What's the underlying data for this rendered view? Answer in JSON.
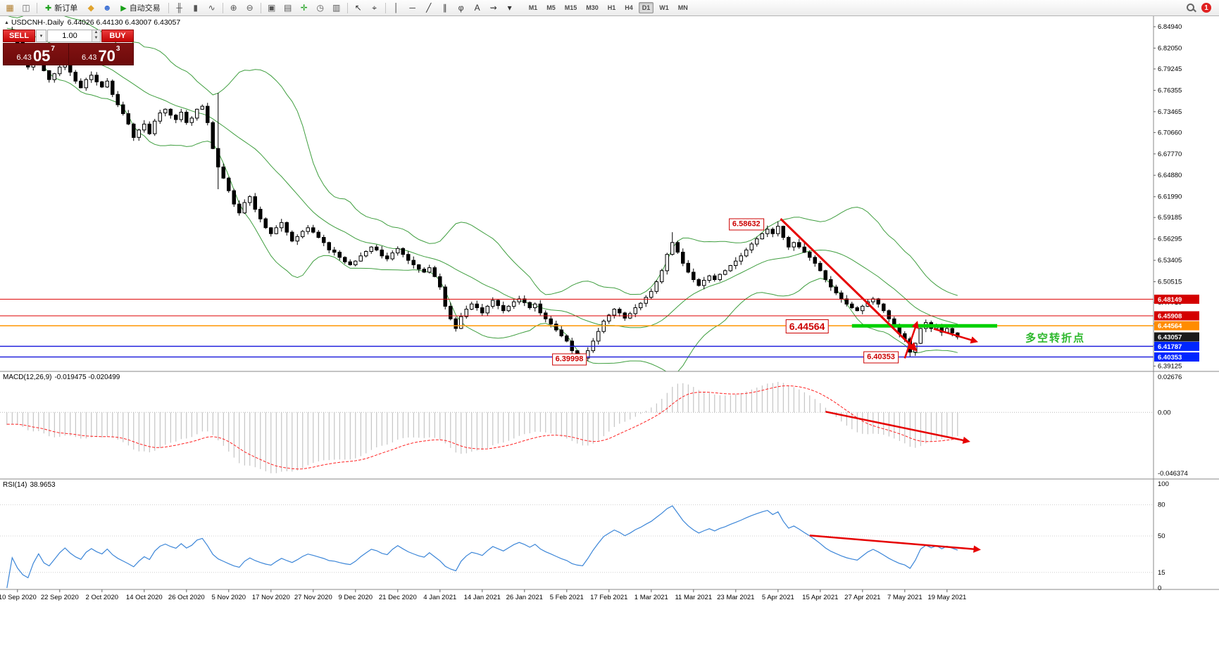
{
  "toolbar": {
    "items": [
      {
        "name": "new-chart-icon",
        "glyph": "▦",
        "color": "#b07c2a"
      },
      {
        "name": "profiles-icon",
        "glyph": "◫",
        "color": "#6a6a6a"
      },
      {
        "sep": true
      },
      {
        "name": "new-order-button",
        "label": "新订单",
        "glyph": "✚",
        "glyph_color": "#1da11d"
      },
      {
        "name": "metaeditor-icon",
        "glyph": "◆",
        "color": "#e0a32e"
      },
      {
        "name": "market-icon",
        "glyph": "☻",
        "color": "#3b6fd4"
      },
      {
        "name": "autotrading-button",
        "label": "自动交易",
        "glyph": "▶",
        "glyph_color": "#18a018"
      },
      {
        "sep": true
      },
      {
        "name": "bar-chart-icon",
        "glyph": "╫",
        "color": "#555555"
      },
      {
        "name": "candlestick-icon",
        "glyph": "▮",
        "color": "#555555"
      },
      {
        "name": "line-chart-icon",
        "glyph": "∿",
        "color": "#555555"
      },
      {
        "sep": true
      },
      {
        "name": "zoom-in-icon",
        "glyph": "⊕",
        "color": "#555555"
      },
      {
        "name": "zoom-out-icon",
        "glyph": "⊖",
        "color": "#555555"
      },
      {
        "sep": true
      },
      {
        "name": "tile-windows-icon",
        "glyph": "▣",
        "color": "#555555"
      },
      {
        "name": "cascade-windows-icon",
        "glyph": "▤",
        "color": "#555555"
      },
      {
        "name": "add-indicator-icon",
        "glyph": "✛",
        "color": "#1da11d"
      },
      {
        "name": "period-icon",
        "glyph": "◷",
        "color": "#555555"
      },
      {
        "name": "templates-icon",
        "glyph": "▥",
        "color": "#555555"
      },
      {
        "sep": true
      },
      {
        "name": "cursor-icon",
        "glyph": "↖",
        "color": "#333333"
      },
      {
        "name": "crosshair-icon",
        "glyph": "⌖",
        "color": "#333333"
      },
      {
        "sep": true
      },
      {
        "name": "vertical-line-icon",
        "glyph": "│",
        "color": "#333333"
      },
      {
        "name": "horizontal-line-icon",
        "glyph": "─",
        "color": "#333333"
      },
      {
        "name": "trendline-icon",
        "glyph": "╱",
        "color": "#333333"
      },
      {
        "name": "channel-icon",
        "glyph": "∥",
        "color": "#333333"
      },
      {
        "name": "fibonacci-icon",
        "glyph": "φ",
        "color": "#333333"
      },
      {
        "name": "text-icon",
        "glyph": "A",
        "color": "#333333"
      },
      {
        "name": "arrows-icon",
        "glyph": "⇝",
        "color": "#333333"
      },
      {
        "name": "shapes-dropdown-icon",
        "glyph": "▾",
        "color": "#333333"
      }
    ],
    "timeframes": [
      {
        "label": "M1"
      },
      {
        "label": "M5"
      },
      {
        "label": "M15"
      },
      {
        "label": "M30"
      },
      {
        "label": "H1"
      },
      {
        "label": "H4"
      },
      {
        "label": "D1",
        "active": true
      },
      {
        "label": "W1"
      },
      {
        "label": "MN"
      }
    ],
    "badge": "1"
  },
  "chart_header": {
    "collapse_icon": "▲",
    "symbol": "USDCNH-.Daily",
    "ohlc": "6.44026 6.44130 6.43007 6.43057"
  },
  "trade_panel": {
    "sell_label": "SELL",
    "buy_label": "BUY",
    "dropdown_glyph": "▾",
    "volume": "1.00",
    "spin_up": "▲",
    "spin_down": "▼",
    "sell_price_prefix": "6.43",
    "sell_price_big": "05",
    "sell_price_sup": "7",
    "buy_price_prefix": "6.43",
    "buy_price_big": "70",
    "buy_price_sup": "3"
  },
  "chart_data": {
    "type": "candlestick",
    "symbol": "USDCNH",
    "period": "Daily",
    "arrow_color": "#e60000",
    "candle_up_color": "#ffffff",
    "candle_down_color": "#000000",
    "bollinger_color": "#3f9e3f",
    "bollinger_period": 20,
    "x_labels": [
      "10 Sep 2020",
      "22 Sep 2020",
      "2 Oct 2020",
      "14 Oct 2020",
      "26 Oct 2020",
      "5 Nov 2020",
      "17 Nov 2020",
      "27 Nov 2020",
      "9 Dec 2020",
      "21 Dec 2020",
      "4 Jan 2021",
      "14 Jan 2021",
      "26 Jan 2021",
      "5 Feb 2021",
      "17 Feb 2021",
      "1 Mar 2021",
      "11 Mar 2021",
      "23 Mar 2021",
      "5 Apr 2021",
      "15 Apr 2021",
      "27 Apr 2021",
      "7 May 2021",
      "19 May 2021"
    ],
    "x_label_days": [
      2,
      10,
      18,
      26,
      34,
      42,
      50,
      58,
      66,
      74,
      82,
      90,
      98,
      106,
      114,
      122,
      130,
      138,
      146,
      154,
      162,
      170,
      178
    ],
    "y_ticks": [
      6.8494,
      6.8205,
      6.79245,
      6.76355,
      6.73465,
      6.7066,
      6.6777,
      6.6488,
      6.6199,
      6.59185,
      6.56295,
      6.53405,
      6.50515,
      6.4771,
      6.4482,
      6.4193,
      6.39125
    ],
    "y_range": [
      6.385,
      6.857
    ],
    "closes": [
      6.833,
      6.841,
      6.828,
      6.81,
      6.795,
      6.806,
      6.815,
      6.79,
      6.778,
      6.786,
      6.795,
      6.802,
      6.788,
      6.776,
      6.767,
      6.778,
      6.784,
      6.775,
      6.768,
      6.776,
      6.758,
      6.744,
      6.732,
      6.718,
      6.7,
      6.71,
      6.718,
      6.705,
      6.722,
      6.733,
      6.738,
      6.73,
      6.724,
      6.734,
      6.72,
      6.726,
      6.738,
      6.742,
      6.72,
      6.685,
      6.66,
      6.645,
      6.628,
      6.61,
      6.598,
      6.612,
      6.62,
      6.603,
      6.59,
      6.578,
      6.57,
      6.578,
      6.585,
      6.572,
      6.56,
      6.566,
      6.573,
      6.578,
      6.572,
      6.565,
      6.558,
      6.548,
      6.545,
      6.538,
      6.532,
      6.528,
      6.533,
      6.54,
      6.546,
      6.552,
      6.548,
      6.54,
      6.536,
      6.544,
      6.55,
      6.542,
      6.534,
      6.528,
      6.522,
      6.518,
      6.524,
      6.512,
      6.498,
      6.472,
      6.455,
      6.442,
      6.458,
      6.468,
      6.475,
      6.47,
      6.463,
      6.472,
      6.48,
      6.473,
      6.466,
      6.472,
      6.478,
      6.482,
      6.477,
      6.47,
      6.475,
      6.463,
      6.455,
      6.448,
      6.44,
      6.432,
      6.425,
      6.412,
      6.405,
      6.402,
      6.412,
      6.425,
      6.438,
      6.452,
      6.46,
      6.468,
      6.463,
      6.456,
      6.462,
      6.47,
      6.476,
      6.484,
      6.492,
      6.505,
      6.52,
      6.542,
      6.558,
      6.545,
      6.53,
      6.518,
      6.508,
      6.5,
      6.507,
      6.513,
      6.508,
      6.515,
      6.52,
      6.527,
      6.533,
      6.54,
      6.548,
      6.556,
      6.563,
      6.57,
      6.576,
      6.57,
      6.58,
      6.565,
      6.552,
      6.558,
      6.552,
      6.545,
      6.538,
      6.53,
      6.52,
      6.508,
      6.498,
      6.49,
      6.482,
      6.475,
      6.47,
      6.466,
      6.472,
      6.478,
      6.482,
      6.475,
      6.466,
      6.455,
      6.445,
      6.435,
      6.428,
      6.41,
      6.422,
      6.442,
      6.45,
      6.442,
      6.446,
      6.437,
      6.442,
      6.436,
      6.4306
    ],
    "wick_overrides": {
      "1": {
        "high": 6.8494
      },
      "40": {
        "high": 6.76,
        "low": 6.63
      },
      "109": {
        "low": 6.39998
      },
      "126": {
        "high": 6.572
      },
      "146": {
        "high": 6.58632
      },
      "171": {
        "low": 6.40353
      }
    },
    "levels": [
      {
        "price": 6.48149,
        "label": "6.48149",
        "color": "#dd0000",
        "tag_bg": "#d40000",
        "width": 1
      },
      {
        "price": 6.45908,
        "label": "6.45908",
        "color": "#dd0000",
        "tag_bg": "#d40000",
        "width": 1
      },
      {
        "price": 6.44564,
        "label": "6.44564",
        "color": "#ff9500",
        "tag_bg": "#ff8c00",
        "width": 1.5
      },
      {
        "price": 6.41787,
        "label": "6.41787",
        "color": "#2222dd",
        "tag_bg": "#0026ff",
        "width": 1.5
      },
      {
        "price": 6.40353,
        "label": "6.40353",
        "color": "#2222dd",
        "tag_bg": "#0026ff",
        "width": 1.5
      }
    ],
    "current_price": {
      "value": 6.43057,
      "label": "6.43057",
      "tag_bg": "#1a1a1a"
    },
    "highlight_segment": {
      "price": 6.4456,
      "day_start": 160,
      "day_end": 187.5,
      "color": "#00d000",
      "thickness": 5
    },
    "annotations": [
      {
        "text": "6.58632",
        "day": 140,
        "price": 6.583,
        "kind": "box",
        "size": "sm"
      },
      {
        "text": "6.44564",
        "day": 151.5,
        "price": 6.4448,
        "kind": "box",
        "size": "lg"
      },
      {
        "text": "6.39998",
        "day": 106.5,
        "price": 6.4,
        "kind": "box",
        "size": "sm"
      },
      {
        "text": "6.40353",
        "day": 165.5,
        "price": 6.4035,
        "kind": "box",
        "size": "sm"
      },
      {
        "text": "多空转折点",
        "day": 198.5,
        "price": 6.4297,
        "kind": "plain",
        "size": "lg",
        "color": "#2eb82e"
      }
    ],
    "arrows": [
      {
        "panel": "main",
        "from": [
          146.5,
          6.59
        ],
        "to": [
          172,
          6.4135
        ],
        "width": 3
      },
      {
        "panel": "main",
        "from": [
          170,
          6.4017
        ],
        "to": [
          172.3,
          6.4495
        ],
        "width": 2.5
      },
      {
        "panel": "main",
        "from": [
          175.5,
          6.4415
        ],
        "to": [
          183.5,
          6.4245
        ],
        "width": 2.5
      },
      {
        "panel": "macd",
        "from": [
          155,
          0.0005
        ],
        "to": [
          182,
          -0.021
        ],
        "width": 2.5
      },
      {
        "panel": "rsi",
        "from": [
          152,
          50.5
        ],
        "to": [
          184,
          37
        ],
        "width": 2.5
      }
    ],
    "indicators": {
      "macd": {
        "label": "MACD(12,26,9)",
        "values": "-0.019475 -0.020499",
        "axis_max": "0.02676",
        "axis_zero": "0.00",
        "axis_min": "-0.046374",
        "fast": 12,
        "slow": 26,
        "signal": 9,
        "histogram_color": "#b9b9b9",
        "signal_color": "#ff2020"
      },
      "rsi": {
        "label": "RSI(14)",
        "value": "38.9653",
        "period": 14,
        "levels": [
          100,
          80,
          50,
          15,
          0
        ],
        "line_color": "#3c86d8"
      }
    }
  }
}
